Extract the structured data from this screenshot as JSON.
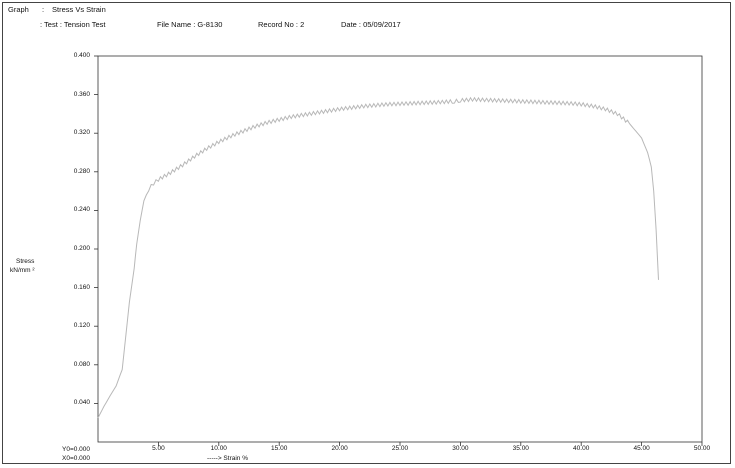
{
  "header": {
    "graph_label": "Graph",
    "graph_sep": ":",
    "graph_title": "Stress Vs Strain",
    "test_label": ": Test : Tension Test",
    "file_name": "File Name : G-8130",
    "record_no": "Record No :  2",
    "date": "Date : 05/09/2017"
  },
  "axes": {
    "ylabel_line1": "Stress",
    "ylabel_line2": "kN/mm ²",
    "xlabel": "-----> Strain  %",
    "y0_label": "Y0=0.000",
    "x0_label": "X0=0.000"
  },
  "chart_data": {
    "type": "line",
    "title": "Stress Vs Strain",
    "xlabel": "-----> Strain  %",
    "ylabel": "Stress kN/mm ²",
    "xlim": [
      0,
      50
    ],
    "ylim": [
      0,
      0.4
    ],
    "x_ticks": [
      "5.00",
      "10.00",
      "15.00",
      "20.00",
      "25.00",
      "30.00",
      "35.00",
      "40.00",
      "45.00",
      "50.00"
    ],
    "y_ticks": [
      "0.040",
      "0.080",
      "0.120",
      "0.160",
      "0.200",
      "0.240",
      "0.280",
      "0.320",
      "0.360",
      "0.400"
    ],
    "grid": false,
    "line_color": "#b8b8b8",
    "series": [
      {
        "x": [
          0,
          0.5,
          1.0,
          1.5,
          2.0,
          2.3,
          2.6,
          3.0,
          3.2,
          3.5,
          3.8,
          4.2,
          4.6,
          5.0,
          6.0,
          7.0,
          8.0,
          9.0,
          10.0,
          11.0,
          12.0,
          13.0,
          14.0,
          15.0,
          16.0,
          17.0,
          18.0,
          19.0,
          20.0,
          22.0,
          24.0,
          26.0,
          28.0,
          29.5,
          30.0,
          31.0,
          33.0,
          35.0,
          37.0,
          39.0,
          40.0,
          41.0,
          42.0,
          43.0,
          44.0,
          45.0,
          45.5,
          45.8,
          46.0,
          46.2,
          46.4
        ],
        "y": [
          0.025,
          0.037,
          0.048,
          0.058,
          0.075,
          0.11,
          0.145,
          0.18,
          0.205,
          0.23,
          0.25,
          0.262,
          0.268,
          0.272,
          0.279,
          0.287,
          0.296,
          0.304,
          0.311,
          0.317,
          0.322,
          0.327,
          0.331,
          0.334,
          0.337,
          0.339,
          0.341,
          0.343,
          0.345,
          0.348,
          0.35,
          0.351,
          0.352,
          0.353,
          0.354,
          0.355,
          0.354,
          0.353,
          0.352,
          0.351,
          0.35,
          0.348,
          0.345,
          0.34,
          0.33,
          0.315,
          0.3,
          0.285,
          0.26,
          0.22,
          0.168
        ]
      }
    ]
  }
}
